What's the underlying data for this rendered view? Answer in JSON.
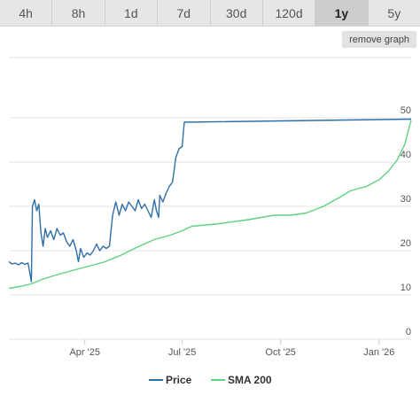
{
  "tabs": [
    {
      "label": "4h",
      "active": false
    },
    {
      "label": "8h",
      "active": false
    },
    {
      "label": "1d",
      "active": false
    },
    {
      "label": "7d",
      "active": false
    },
    {
      "label": "30d",
      "active": false
    },
    {
      "label": "120d",
      "active": false
    },
    {
      "label": "1y",
      "active": true
    },
    {
      "label": "5y",
      "active": false
    }
  ],
  "remove_graph_label": "remove graph",
  "colors": {
    "price": "#2f6fa7",
    "sma": "#5fd07f",
    "grid": "#e4e4e4"
  },
  "chart_data": {
    "type": "line",
    "title": "",
    "xlabel": "",
    "ylabel": "",
    "x_range": [
      "2025-01-20",
      "2026-01-31"
    ],
    "ylim": [
      0,
      52
    ],
    "y_ticks": [
      0,
      10,
      20,
      30,
      40,
      50
    ],
    "x_ticks": [
      {
        "label": "Apr '25",
        "date": "2025-04-01"
      },
      {
        "label": "Jul '25",
        "date": "2025-07-01"
      },
      {
        "label": "Oct '25",
        "date": "2025-10-01"
      },
      {
        "label": "Jan '26",
        "date": "2026-01-01"
      }
    ],
    "grid": true,
    "legend": "bottom-center",
    "series": [
      {
        "name": "Price",
        "color": "#2f6fa7",
        "points": [
          [
            "2025-01-20",
            17.5
          ],
          [
            "2025-01-23",
            17.0
          ],
          [
            "2025-01-26",
            17.2
          ],
          [
            "2025-01-29",
            16.8
          ],
          [
            "2025-02-01",
            17.3
          ],
          [
            "2025-02-04",
            16.9
          ],
          [
            "2025-02-07",
            17.2
          ],
          [
            "2025-02-10",
            13.0
          ],
          [
            "2025-02-11",
            30.0
          ],
          [
            "2025-02-13",
            31.5
          ],
          [
            "2025-02-15",
            29.0
          ],
          [
            "2025-02-17",
            30.5
          ],
          [
            "2025-02-19",
            24.0
          ],
          [
            "2025-02-21",
            21.0
          ],
          [
            "2025-02-23",
            25.0
          ],
          [
            "2025-02-25",
            23.0
          ],
          [
            "2025-02-28",
            24.5
          ],
          [
            "2025-03-03",
            22.5
          ],
          [
            "2025-03-06",
            25.0
          ],
          [
            "2025-03-09",
            23.5
          ],
          [
            "2025-03-12",
            24.0
          ],
          [
            "2025-03-15",
            22.0
          ],
          [
            "2025-03-18",
            21.0
          ],
          [
            "2025-03-21",
            22.5
          ],
          [
            "2025-03-24",
            20.0
          ],
          [
            "2025-03-26",
            17.5
          ],
          [
            "2025-03-28",
            20.5
          ],
          [
            "2025-03-31",
            18.5
          ],
          [
            "2025-04-03",
            19.5
          ],
          [
            "2025-04-06",
            19.0
          ],
          [
            "2025-04-09",
            20.0
          ],
          [
            "2025-04-12",
            21.5
          ],
          [
            "2025-04-15",
            20.0
          ],
          [
            "2025-04-18",
            21.0
          ],
          [
            "2025-04-21",
            20.5
          ],
          [
            "2025-04-24",
            21.0
          ],
          [
            "2025-04-27",
            28.0
          ],
          [
            "2025-04-30",
            31.0
          ],
          [
            "2025-05-03",
            28.0
          ],
          [
            "2025-05-06",
            30.5
          ],
          [
            "2025-05-09",
            29.0
          ],
          [
            "2025-05-12",
            31.0
          ],
          [
            "2025-05-15",
            30.0
          ],
          [
            "2025-05-18",
            29.0
          ],
          [
            "2025-05-21",
            31.5
          ],
          [
            "2025-05-24",
            29.5
          ],
          [
            "2025-05-27",
            30.5
          ],
          [
            "2025-05-30",
            29.0
          ],
          [
            "2025-06-02",
            27.5
          ],
          [
            "2025-06-05",
            31.5
          ],
          [
            "2025-06-07",
            29.0
          ],
          [
            "2025-06-09",
            27.5
          ],
          [
            "2025-06-10",
            32.5
          ],
          [
            "2025-06-13",
            31.0
          ],
          [
            "2025-06-16",
            33.0
          ],
          [
            "2025-06-19",
            34.5
          ],
          [
            "2025-06-22",
            35.5
          ],
          [
            "2025-06-25",
            41.0
          ],
          [
            "2025-06-28",
            43.0
          ],
          [
            "2025-07-01",
            43.5
          ],
          [
            "2025-07-03",
            49.0
          ],
          [
            "2026-01-31",
            49.7
          ]
        ]
      },
      {
        "name": "SMA 200",
        "color": "#5fd07f",
        "points": [
          [
            "2025-01-20",
            11.5
          ],
          [
            "2025-02-01",
            12.0
          ],
          [
            "2025-02-10",
            12.5
          ],
          [
            "2025-02-20",
            13.5
          ],
          [
            "2025-03-05",
            14.5
          ],
          [
            "2025-03-20",
            15.5
          ],
          [
            "2025-04-05",
            16.5
          ],
          [
            "2025-04-20",
            17.5
          ],
          [
            "2025-05-05",
            19.0
          ],
          [
            "2025-05-20",
            20.8
          ],
          [
            "2025-06-05",
            22.5
          ],
          [
            "2025-06-20",
            23.5
          ],
          [
            "2025-07-01",
            24.5
          ],
          [
            "2025-07-10",
            25.5
          ],
          [
            "2025-08-01",
            26.0
          ],
          [
            "2025-09-01",
            27.0
          ],
          [
            "2025-09-25",
            28.0
          ],
          [
            "2025-10-10",
            28.0
          ],
          [
            "2025-10-25",
            28.5
          ],
          [
            "2025-11-10",
            30.0
          ],
          [
            "2025-11-25",
            32.0
          ],
          [
            "2025-12-05",
            33.5
          ],
          [
            "2025-12-20",
            34.5
          ],
          [
            "2026-01-01",
            36.0
          ],
          [
            "2026-01-10",
            38.0
          ],
          [
            "2026-01-18",
            40.5
          ],
          [
            "2026-01-25",
            44.0
          ],
          [
            "2026-01-31",
            49.5
          ]
        ]
      }
    ]
  }
}
